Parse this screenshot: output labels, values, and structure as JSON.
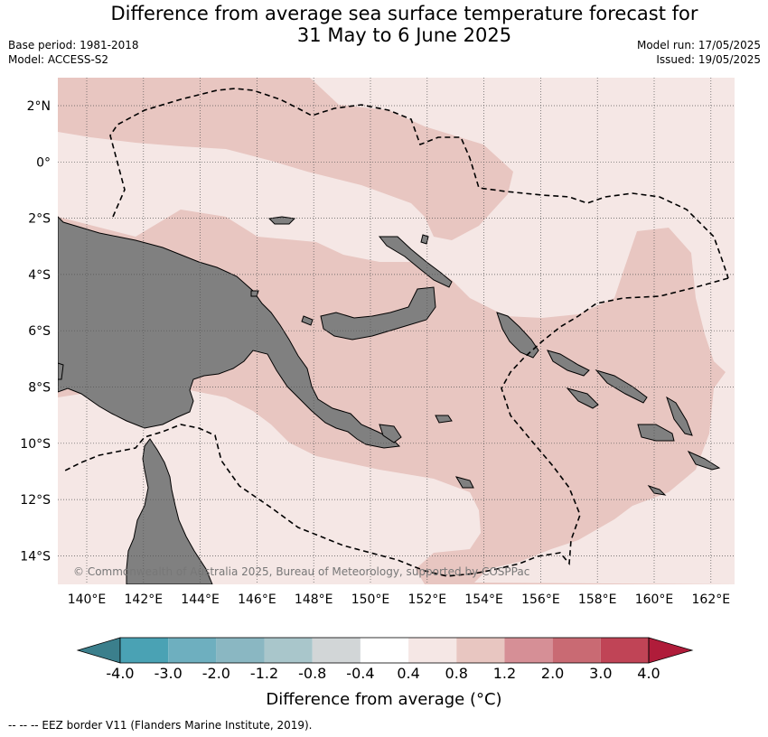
{
  "title_line1": "Difference from average sea surface temperature forecast for",
  "title_line2": "31 May to 6 June 2025",
  "meta_left": {
    "base_period": "Base period: 1981-2018",
    "model": "Model: ACCESS-S2"
  },
  "meta_right": {
    "model_run": "Model run: 17/05/2025",
    "issued": "Issued: 19/05/2025"
  },
  "map": {
    "lat_labels": [
      "2°N",
      "0°",
      "2°S",
      "4°S",
      "6°S",
      "8°S",
      "10°S",
      "12°S",
      "14°S"
    ],
    "lon_labels": [
      "140°E",
      "142°E",
      "144°E",
      "146°E",
      "148°E",
      "150°E",
      "152°E",
      "154°E",
      "156°E",
      "158°E",
      "160°E",
      "162°E"
    ],
    "copyright": "© Commonwealth of Australia 2025, Bureau of Meteorology, supported by COSPPac",
    "colors": {
      "anomaly_0_4_to_0_8": "#f5e7e5",
      "anomaly_0_8_to_1_2": "#e8c6c1",
      "land": "#808080",
      "grid": "#555555"
    }
  },
  "colorbar": {
    "ticks": [
      "-4.0",
      "-3.0",
      "-2.0",
      "-1.2",
      "-0.8",
      "-0.4",
      "0.4",
      "0.8",
      "1.2",
      "2.0",
      "3.0",
      "4.0"
    ],
    "colors": [
      "#3b7f8c",
      "#4aa2b4",
      "#6eafbf",
      "#8ab7c2",
      "#a9c6cb",
      "#d2d6d7",
      "#ffffff",
      "#f5e7e5",
      "#e8c6c1",
      "#d68f96",
      "#c96a73",
      "#c04456",
      "#b01c3a"
    ],
    "title": "Difference from average (°C)"
  },
  "footnote": "--  --  -- EEZ border V11 (Flanders Marine Institute, 2019)."
}
